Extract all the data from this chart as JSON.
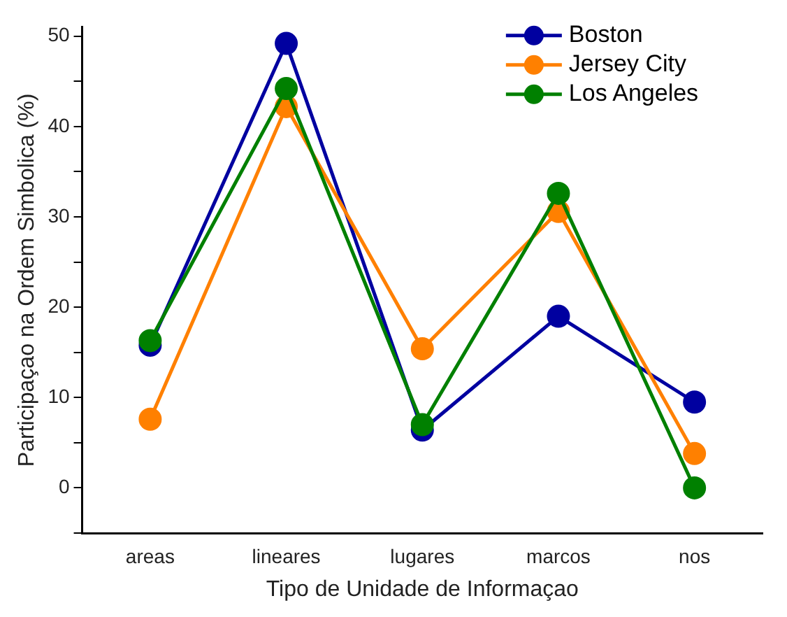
{
  "chart_data": {
    "type": "line",
    "xlabel": "Tipo de Unidade de Informaçao",
    "ylabel": "Participaçao na Ordem Simbolica (%)",
    "categories": [
      "areas",
      "lineares",
      "lugares",
      "marcos",
      "nos"
    ],
    "series": [
      {
        "name": "Boston",
        "color": "#0000a0",
        "values": [
          15.8,
          49.2,
          6.4,
          19.0,
          9.5
        ]
      },
      {
        "name": "Jersey City",
        "color": "#ff8000",
        "values": [
          7.6,
          42.2,
          15.4,
          30.6,
          3.8
        ]
      },
      {
        "name": "Los Angeles",
        "color": "#008000",
        "values": [
          16.3,
          44.2,
          7.0,
          32.6,
          0
        ]
      }
    ],
    "ylim": [
      -5,
      51
    ],
    "yticks": [
      {
        "value": -5,
        "label": null
      },
      0,
      {
        "value": 5,
        "label": null
      },
      10,
      {
        "value": 15,
        "label": null
      },
      20,
      {
        "value": 25,
        "label": null
      },
      30,
      {
        "value": 35,
        "label": null
      },
      40,
      {
        "value": 45,
        "label": null
      },
      50
    ],
    "grid": false,
    "legend": "top right",
    "marker": "circle",
    "line_style": "solid"
  }
}
